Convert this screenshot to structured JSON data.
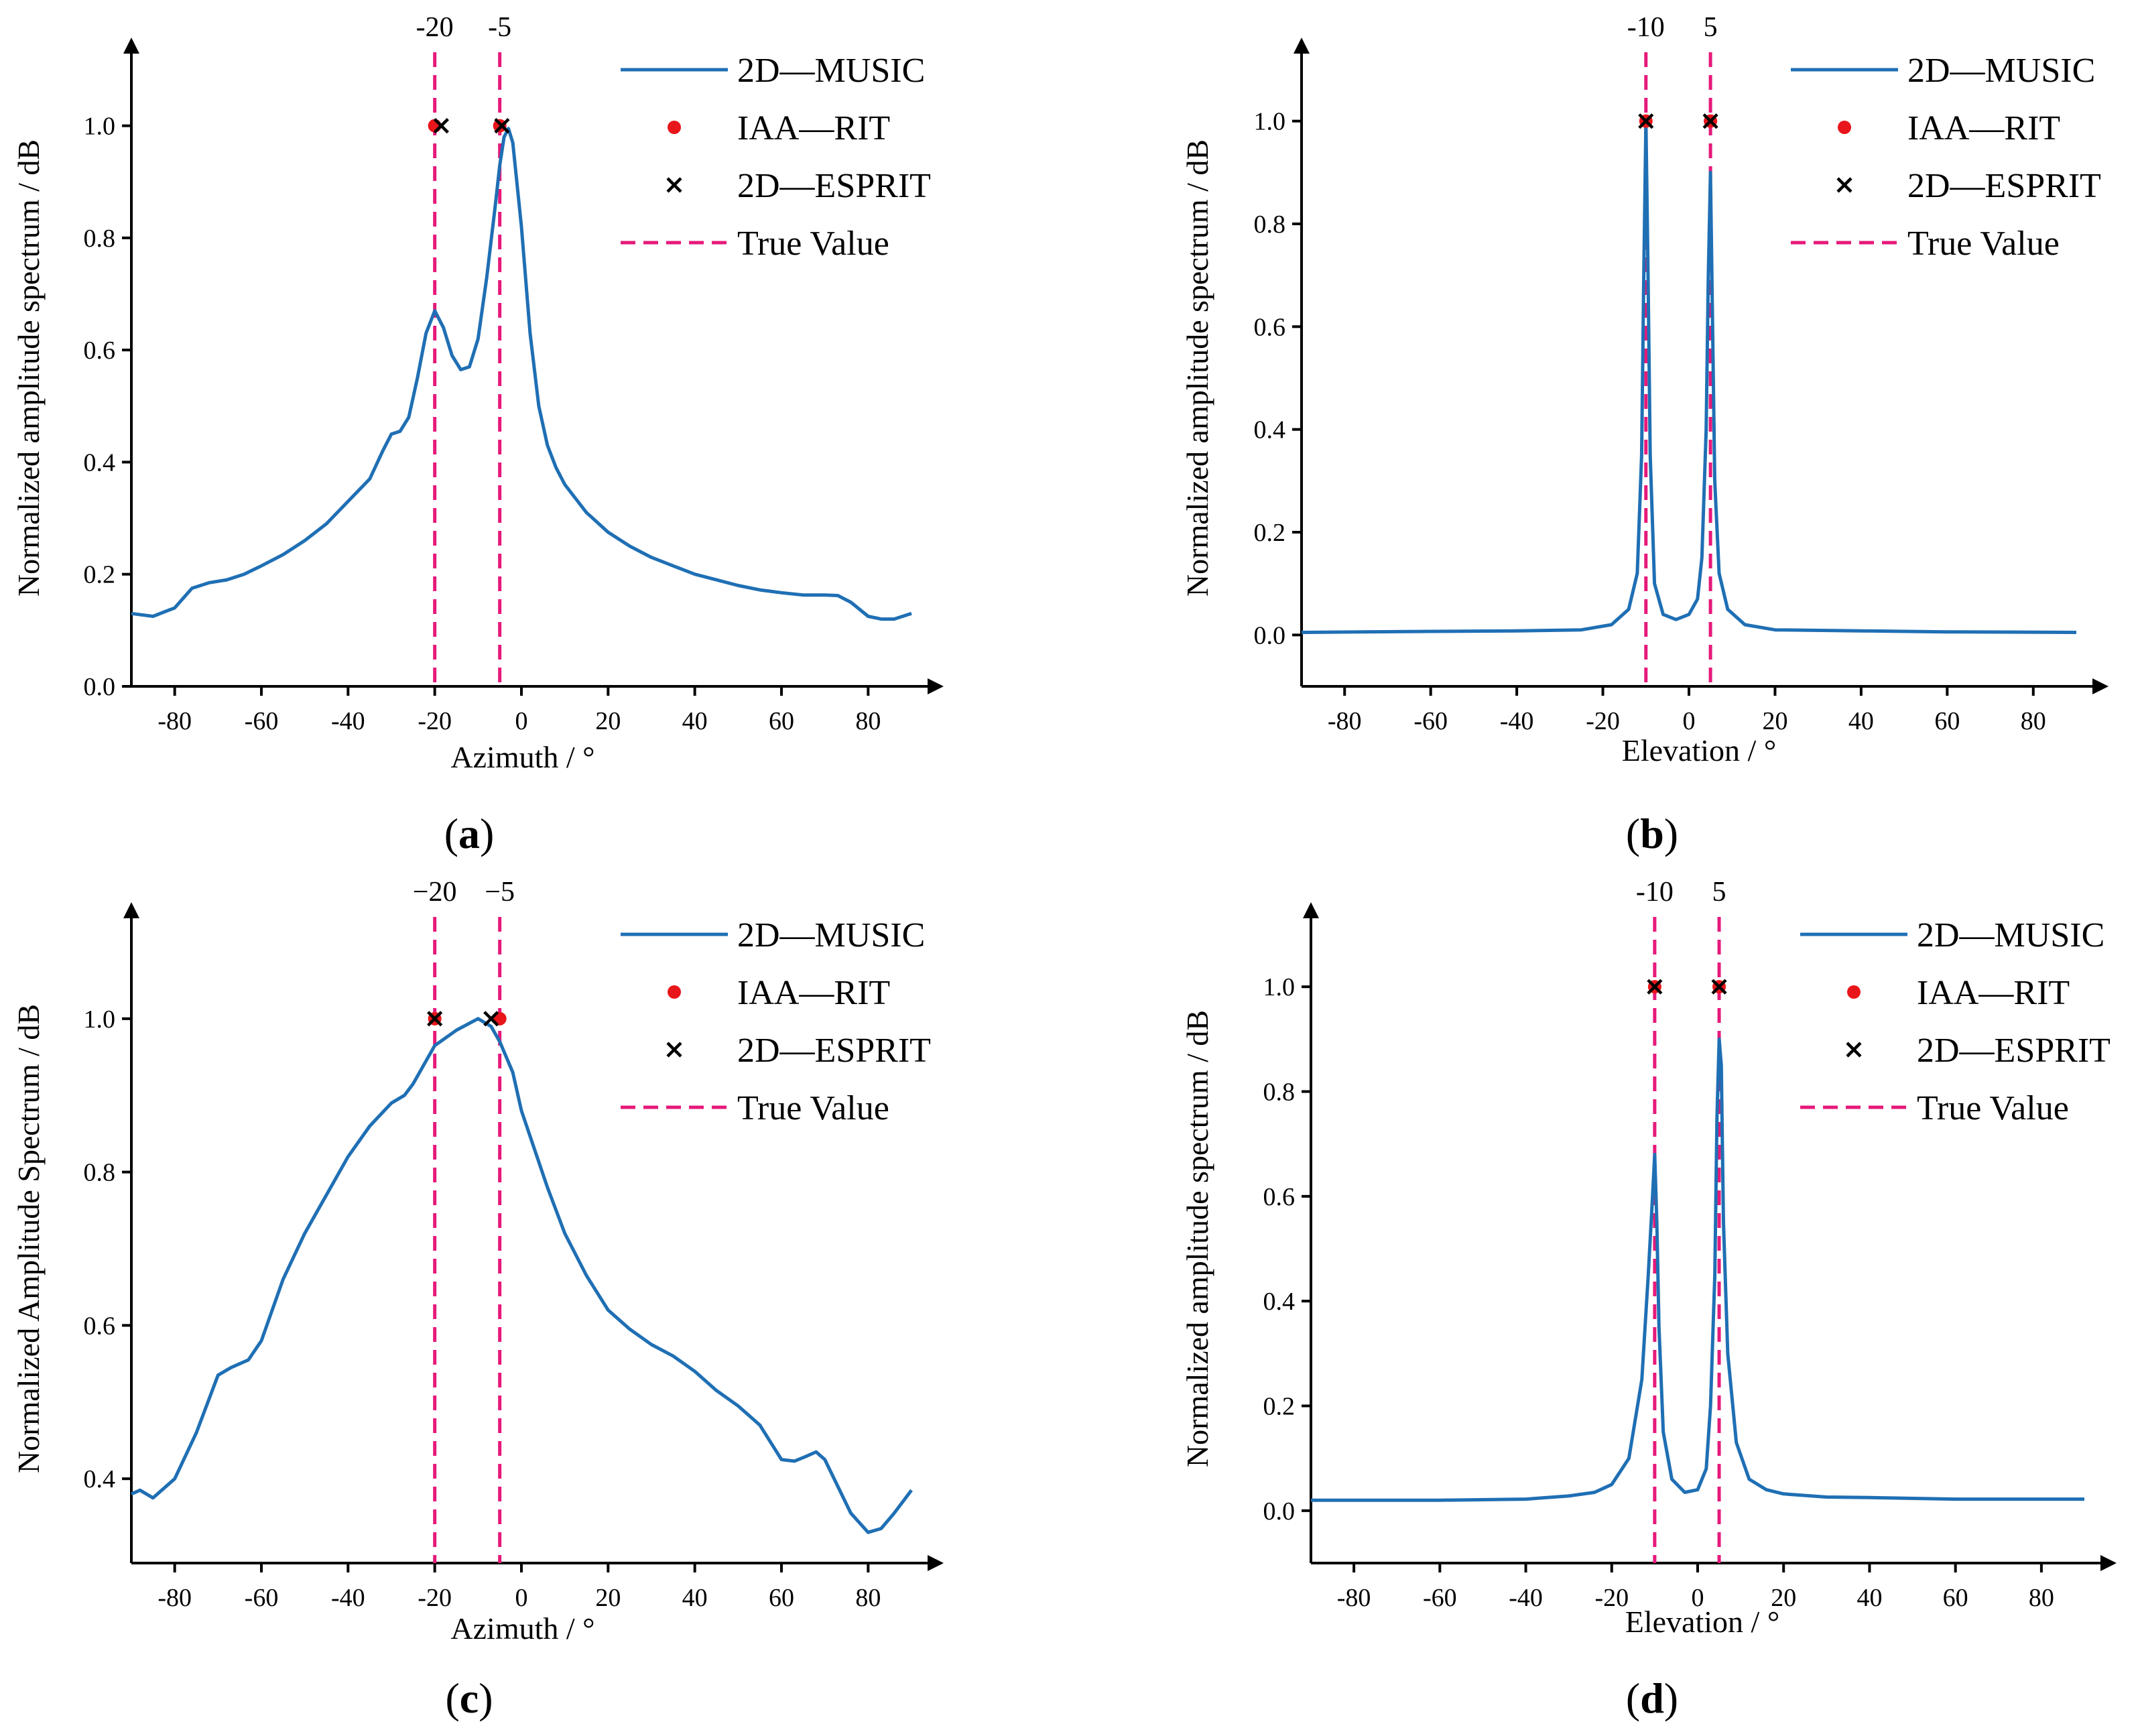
{
  "figure": {
    "colors": {
      "music": "#1f6fb4",
      "iaa": "#e8161b",
      "esprit": "#000000",
      "true_value": "#e6197a"
    }
  },
  "chart_data": [
    {
      "panel_label": "a",
      "type": "line",
      "xlabel": "Azimuth / °",
      "ylabel": "Normalized amplitude spectrum / dB",
      "xlim": [
        -90,
        90
      ],
      "ylim": [
        0,
        1.1
      ],
      "xticks": [
        -80,
        -60,
        -40,
        -20,
        0,
        20,
        40,
        60,
        80
      ],
      "yticks": [
        0.0,
        0.2,
        0.4,
        0.6,
        0.8,
        1.0
      ],
      "ytick_labels": [
        "0.0",
        "0.2",
        "0.4",
        "0.6",
        "0.8",
        "1.0"
      ],
      "legend": [
        "2D—MUSIC",
        "IAA—RIT",
        "2D—ESPRIT",
        "True Value"
      ],
      "true_values": [
        -20,
        -5
      ],
      "true_value_labels": [
        "-20",
        "-5"
      ],
      "iaa_rit": [
        {
          "x": -20,
          "y": 1.0
        },
        {
          "x": -5,
          "y": 1.0
        }
      ],
      "esprit": [
        {
          "x": -18.5,
          "y": 1.0
        },
        {
          "x": -4.5,
          "y": 1.0
        }
      ],
      "series": [
        {
          "name": "2D—MUSIC",
          "x": [
            -90,
            -85,
            -80,
            -76,
            -72,
            -68,
            -64,
            -60,
            -55,
            -50,
            -45,
            -40,
            -35,
            -32,
            -30,
            -28,
            -26,
            -24,
            -22,
            -20,
            -18,
            -16,
            -14,
            -12,
            -10,
            -8,
            -6,
            -5,
            -4,
            -3,
            -2,
            0,
            2,
            4,
            6,
            8,
            10,
            15,
            20,
            25,
            30,
            35,
            40,
            45,
            50,
            55,
            60,
            65,
            70,
            73,
            76,
            80,
            83,
            86,
            90
          ],
          "y": [
            0.13,
            0.125,
            0.14,
            0.175,
            0.185,
            0.19,
            0.2,
            0.215,
            0.235,
            0.26,
            0.29,
            0.33,
            0.37,
            0.42,
            0.45,
            0.455,
            0.48,
            0.55,
            0.63,
            0.67,
            0.64,
            0.59,
            0.565,
            0.57,
            0.62,
            0.73,
            0.86,
            0.93,
            0.98,
            0.995,
            0.97,
            0.82,
            0.63,
            0.5,
            0.43,
            0.39,
            0.36,
            0.31,
            0.275,
            0.25,
            0.23,
            0.215,
            0.2,
            0.19,
            0.18,
            0.172,
            0.167,
            0.163,
            0.163,
            0.162,
            0.15,
            0.125,
            0.12,
            0.12,
            0.13
          ]
        }
      ]
    },
    {
      "panel_label": "b",
      "type": "line",
      "xlabel": "Elevation / °",
      "ylabel": "Normalized amplitude spectrum / dB",
      "xlim": [
        -90,
        90
      ],
      "ylim": [
        -0.1,
        1.1
      ],
      "xticks": [
        -80,
        -60,
        -40,
        -20,
        0,
        20,
        40,
        60,
        80
      ],
      "yticks": [
        0.0,
        0.2,
        0.4,
        0.6,
        0.8,
        1.0
      ],
      "ytick_labels": [
        "0.0",
        "0.2",
        "0.4",
        "0.6",
        "0.8",
        "1.0"
      ],
      "legend": [
        "2D—MUSIC",
        "IAA—RIT",
        "2D—ESPRIT",
        "True Value"
      ],
      "true_values": [
        -10,
        5
      ],
      "true_value_labels": [
        "-10",
        "5"
      ],
      "iaa_rit": [
        {
          "x": -10,
          "y": 1.0
        },
        {
          "x": 5,
          "y": 1.0
        }
      ],
      "esprit": [
        {
          "x": -10,
          "y": 1.0
        },
        {
          "x": 5,
          "y": 1.0
        }
      ],
      "series": [
        {
          "name": "2D—MUSIC",
          "x": [
            -90,
            -60,
            -40,
            -25,
            -18,
            -14,
            -12,
            -11,
            -10.5,
            -10,
            -9.5,
            -9,
            -8,
            -6,
            -3,
            0,
            2,
            3,
            4,
            4.5,
            5,
            5.5,
            6,
            7,
            9,
            13,
            20,
            40,
            60,
            90
          ],
          "y": [
            0.005,
            0.007,
            0.008,
            0.01,
            0.02,
            0.05,
            0.12,
            0.35,
            0.7,
            1.0,
            0.7,
            0.35,
            0.1,
            0.04,
            0.03,
            0.04,
            0.07,
            0.15,
            0.4,
            0.7,
            0.9,
            0.6,
            0.3,
            0.12,
            0.05,
            0.02,
            0.01,
            0.008,
            0.006,
            0.005
          ]
        }
      ]
    },
    {
      "panel_label": "c",
      "type": "line",
      "xlabel": "Azimuth / °",
      "ylabel": "Normalized Amplitude Spectrum / dB",
      "xlim": [
        -90,
        90
      ],
      "ylim": [
        0.29,
        1.11
      ],
      "xticks": [
        -80,
        -60,
        -40,
        -20,
        0,
        20,
        40,
        60,
        80
      ],
      "yticks": [
        0.4,
        0.6,
        0.8,
        1.0
      ],
      "ytick_labels": [
        "0.4",
        "0.6",
        "0.8",
        "1.0"
      ],
      "legend": [
        "2D—MUSIC",
        "IAA—RIT",
        "2D—ESPRIT",
        "True Value"
      ],
      "true_values": [
        -20,
        -5
      ],
      "true_value_labels": [
        "−20",
        "−5"
      ],
      "iaa_rit": [
        {
          "x": -20,
          "y": 1.0
        },
        {
          "x": -5,
          "y": 1.0
        }
      ],
      "esprit": [
        {
          "x": -20,
          "y": 1.0
        },
        {
          "x": -7,
          "y": 1.0
        }
      ],
      "series": [
        {
          "name": "2D—MUSIC",
          "x": [
            -90,
            -88,
            -85,
            -80,
            -75,
            -70,
            -67,
            -63,
            -60,
            -55,
            -50,
            -45,
            -40,
            -35,
            -30,
            -27,
            -25,
            -20,
            -15,
            -10,
            -7,
            -5,
            -2,
            0,
            3,
            6,
            10,
            15,
            20,
            25,
            30,
            35,
            40,
            45,
            50,
            55,
            60,
            63,
            66,
            68,
            70,
            73,
            76,
            80,
            83,
            86,
            90
          ],
          "y": [
            0.38,
            0.385,
            0.375,
            0.4,
            0.46,
            0.535,
            0.545,
            0.555,
            0.58,
            0.66,
            0.72,
            0.77,
            0.82,
            0.86,
            0.89,
            0.9,
            0.915,
            0.965,
            0.985,
            1.0,
            0.99,
            0.97,
            0.93,
            0.88,
            0.83,
            0.78,
            0.72,
            0.665,
            0.62,
            0.595,
            0.575,
            0.56,
            0.54,
            0.515,
            0.495,
            0.47,
            0.425,
            0.423,
            0.43,
            0.435,
            0.425,
            0.39,
            0.355,
            0.33,
            0.335,
            0.355,
            0.385
          ]
        }
      ]
    },
    {
      "panel_label": "d",
      "type": "line",
      "xlabel": "Elevation / °",
      "ylabel": "Normalized amplitude spectrum / dB",
      "xlim": [
        -90,
        90
      ],
      "ylim": [
        -0.1,
        1.1
      ],
      "xticks": [
        -80,
        -60,
        -40,
        -20,
        0,
        20,
        40,
        60,
        80
      ],
      "yticks": [
        0.0,
        0.2,
        0.4,
        0.6,
        0.8,
        1.0
      ],
      "ytick_labels": [
        "0.0",
        "0.2",
        "0.4",
        "0.6",
        "0.8",
        "1.0"
      ],
      "legend": [
        "2D—MUSIC",
        "IAA—RIT",
        "2D—ESPRIT",
        "True Value"
      ],
      "true_values": [
        -10,
        5
      ],
      "true_value_labels": [
        "-10",
        "5"
      ],
      "iaa_rit": [
        {
          "x": -10,
          "y": 1.0
        },
        {
          "x": 5,
          "y": 1.0
        }
      ],
      "esprit": [
        {
          "x": -10,
          "y": 1.0
        },
        {
          "x": 5,
          "y": 1.0
        }
      ],
      "series": [
        {
          "name": "2D—MUSIC",
          "x": [
            -90,
            -60,
            -40,
            -30,
            -24,
            -20,
            -16,
            -13,
            -11.5,
            -10.5,
            -10,
            -9.5,
            -9,
            -8,
            -6,
            -3,
            0,
            2,
            3,
            4,
            4.5,
            5,
            5.5,
            6,
            7,
            9,
            12,
            16,
            20,
            30,
            40,
            60,
            90
          ],
          "y": [
            0.02,
            0.02,
            0.022,
            0.028,
            0.035,
            0.05,
            0.1,
            0.25,
            0.45,
            0.6,
            0.68,
            0.55,
            0.35,
            0.15,
            0.06,
            0.035,
            0.04,
            0.08,
            0.2,
            0.45,
            0.75,
            0.9,
            0.85,
            0.55,
            0.3,
            0.13,
            0.06,
            0.04,
            0.032,
            0.026,
            0.025,
            0.022,
            0.022
          ]
        }
      ]
    }
  ]
}
